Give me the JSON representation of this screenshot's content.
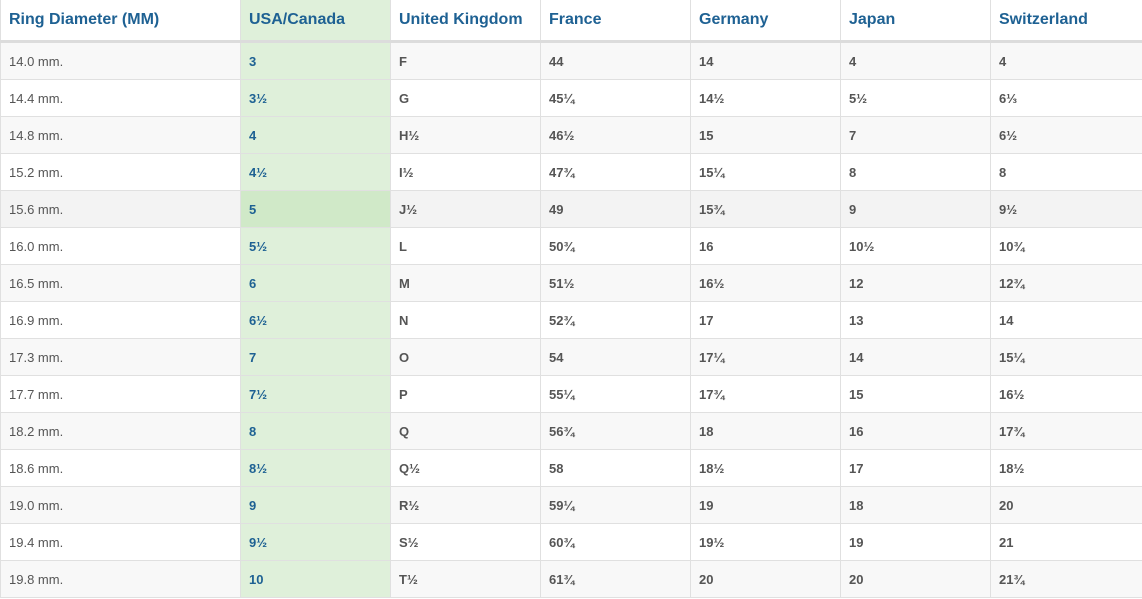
{
  "headers": [
    "Ring Diameter (MM)",
    "USA/Canada",
    "United Kingdom",
    "France",
    "Germany",
    "Japan",
    "Switzerland"
  ],
  "highlight_color": "#dff0da",
  "header_color": "#1e6193",
  "hovered_row": 4,
  "rows": [
    [
      "14.0 mm.",
      "3",
      "F",
      "44",
      "14",
      "4",
      "4"
    ],
    [
      "14.4 mm.",
      "3½",
      "G",
      "45¼",
      "14½",
      "5½",
      "6⅓"
    ],
    [
      "14.8 mm.",
      "4",
      "H½",
      "46½",
      "15",
      "7",
      "6½"
    ],
    [
      "15.2 mm.",
      "4½",
      "I½",
      "47¾",
      "15¼",
      "8",
      "8"
    ],
    [
      "15.6 mm.",
      "5",
      "J½",
      "49",
      "15¾",
      "9",
      "9½"
    ],
    [
      "16.0 mm.",
      "5½",
      "L",
      "50¾",
      "16",
      "10½",
      "10¾"
    ],
    [
      "16.5 mm.",
      "6",
      "M",
      "51½",
      "16½",
      "12",
      "12¾"
    ],
    [
      "16.9 mm.",
      "6½",
      "N",
      "52¾",
      "17",
      "13",
      "14"
    ],
    [
      "17.3 mm.",
      "7",
      "O",
      "54",
      "17¼",
      "14",
      "15¼"
    ],
    [
      "17.7 mm.",
      "7½",
      "P",
      "55¼",
      "17¾",
      "15",
      "16½"
    ],
    [
      "18.2 mm.",
      "8",
      "Q",
      "56¾",
      "18",
      "16",
      "17¾"
    ],
    [
      "18.6 mm.",
      "8½",
      "Q½",
      "58",
      "18½",
      "17",
      "18½"
    ],
    [
      "19.0 mm.",
      "9",
      "R½",
      "59¼",
      "19",
      "18",
      "20"
    ],
    [
      "19.4 mm.",
      "9½",
      "S½",
      "60¾",
      "19½",
      "19",
      "21"
    ],
    [
      "19.8 mm.",
      "10",
      "T½",
      "61¾",
      "20",
      "20",
      "21¾"
    ]
  ]
}
